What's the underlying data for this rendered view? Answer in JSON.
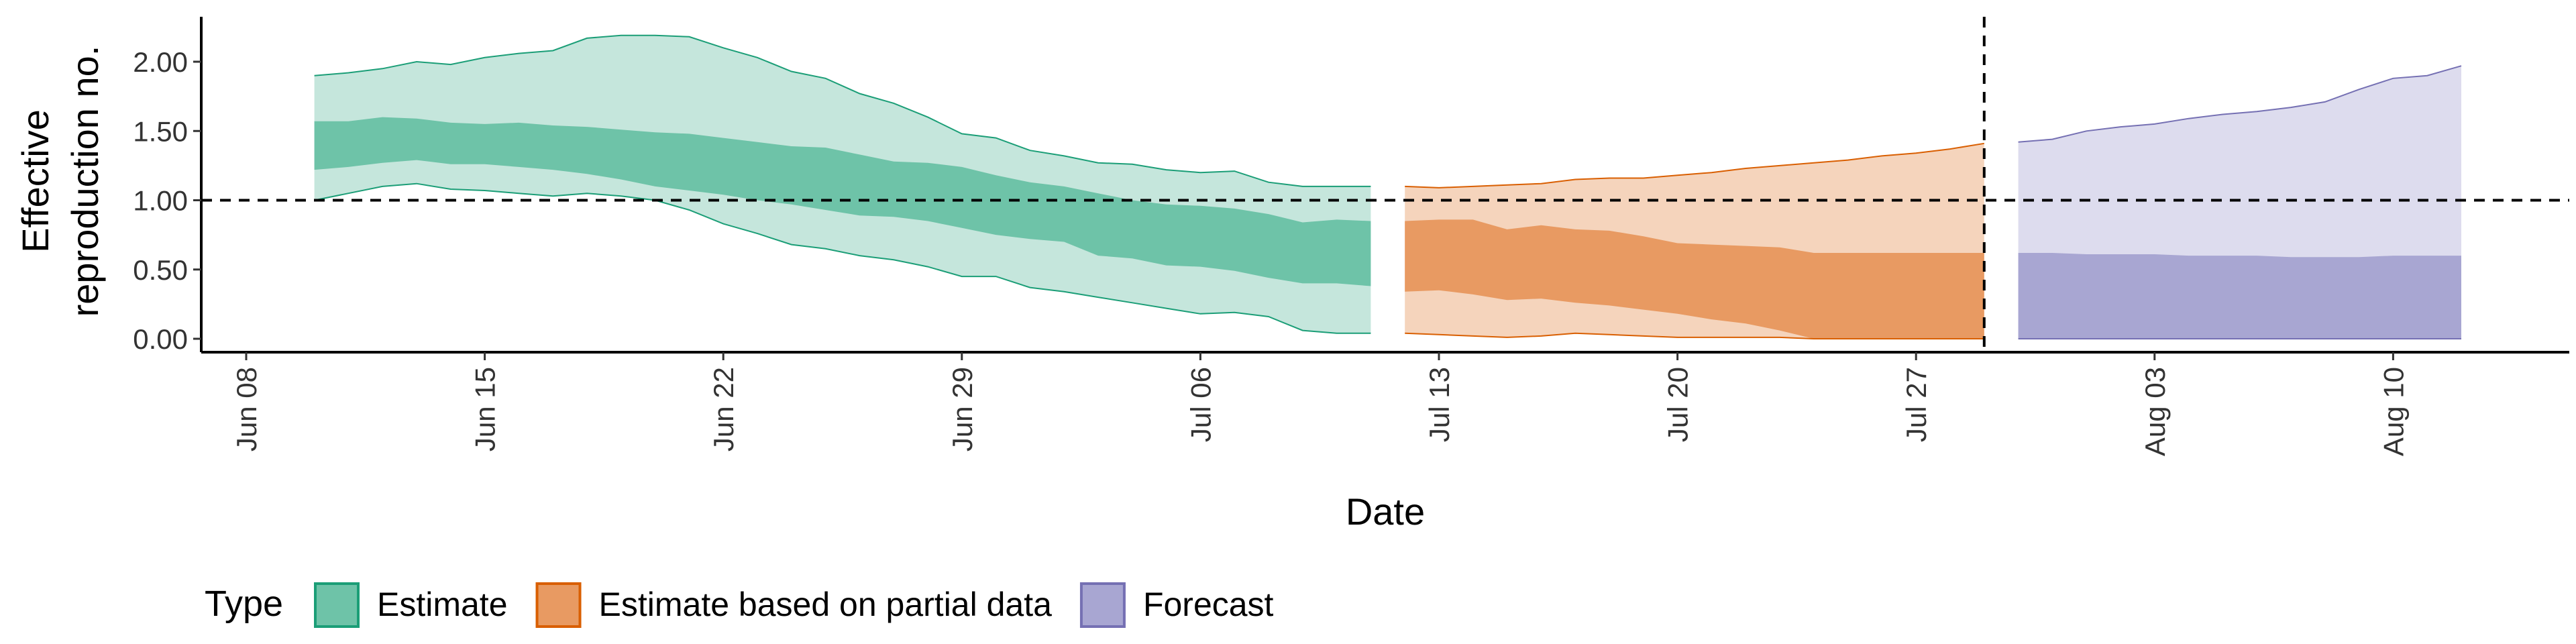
{
  "chart_data": {
    "type": "area",
    "xlabel": "Date",
    "ylabel_lines": [
      "Effective",
      "reproduction no."
    ],
    "ylim": [
      0,
      2.3
    ],
    "yticks": [
      0,
      0.5,
      1.0,
      1.5,
      2.0
    ],
    "ytick_labels": [
      "0.00",
      "0.50",
      "1.00",
      "1.50",
      "2.00"
    ],
    "xticks": [
      {
        "date": "2020-06-08",
        "label": "Jun 08"
      },
      {
        "date": "2020-06-15",
        "label": "Jun 15"
      },
      {
        "date": "2020-06-22",
        "label": "Jun 22"
      },
      {
        "date": "2020-06-29",
        "label": "Jun 29"
      },
      {
        "date": "2020-07-06",
        "label": "Jul 06"
      },
      {
        "date": "2020-07-13",
        "label": "Jul 13"
      },
      {
        "date": "2020-07-20",
        "label": "Jul 20"
      },
      {
        "date": "2020-07-27",
        "label": "Jul 27"
      },
      {
        "date": "2020-08-03",
        "label": "Aug 03"
      },
      {
        "date": "2020-08-10",
        "label": "Aug 10"
      }
    ],
    "xlim": [
      "2020-06-08",
      "2020-08-15"
    ],
    "reference_line_y": 1.0,
    "vertical_line_date": "2020-07-29",
    "legend": {
      "title": "Type",
      "position": "bottom",
      "items": [
        {
          "label": "Estimate",
          "fill": "#6ec3a8",
          "border": "#1b9e77"
        },
        {
          "label": "Estimate based on partial data",
          "fill": "#e89a62",
          "border": "#d95f02"
        },
        {
          "label": "Forecast",
          "fill": "#a8a6d2",
          "border": "#7570b3"
        }
      ]
    },
    "series": [
      {
        "name": "Estimate",
        "outer_fill": "#c5e6dc",
        "inner_fill": "#6ec3a8",
        "stroke": "#1b9e77",
        "dates": [
          "2020-06-10",
          "2020-06-11",
          "2020-06-12",
          "2020-06-13",
          "2020-06-14",
          "2020-06-15",
          "2020-06-16",
          "2020-06-17",
          "2020-06-18",
          "2020-06-19",
          "2020-06-20",
          "2020-06-21",
          "2020-06-22",
          "2020-06-23",
          "2020-06-24",
          "2020-06-25",
          "2020-06-26",
          "2020-06-27",
          "2020-06-28",
          "2020-06-29",
          "2020-06-30",
          "2020-07-01",
          "2020-07-02",
          "2020-07-03",
          "2020-07-04",
          "2020-07-05",
          "2020-07-06",
          "2020-07-07",
          "2020-07-08",
          "2020-07-09",
          "2020-07-10",
          "2020-07-11"
        ],
        "outer_upper": [
          1.9,
          1.92,
          1.95,
          2.0,
          1.98,
          2.03,
          2.06,
          2.08,
          2.17,
          2.19,
          2.19,
          2.18,
          2.1,
          2.03,
          1.93,
          1.88,
          1.77,
          1.7,
          1.6,
          1.48,
          1.45,
          1.36,
          1.32,
          1.27,
          1.26,
          1.22,
          1.2,
          1.21,
          1.13,
          1.1,
          1.1,
          1.1
        ],
        "inner_upper": [
          1.57,
          1.57,
          1.6,
          1.59,
          1.56,
          1.55,
          1.56,
          1.54,
          1.53,
          1.51,
          1.49,
          1.48,
          1.45,
          1.42,
          1.39,
          1.38,
          1.33,
          1.28,
          1.27,
          1.24,
          1.18,
          1.13,
          1.1,
          1.05,
          1.0,
          0.97,
          0.96,
          0.94,
          0.9,
          0.84,
          0.86,
          0.85
        ],
        "inner_lower": [
          1.22,
          1.24,
          1.27,
          1.29,
          1.26,
          1.26,
          1.24,
          1.22,
          1.19,
          1.15,
          1.1,
          1.07,
          1.04,
          1.0,
          0.97,
          0.93,
          0.89,
          0.88,
          0.85,
          0.8,
          0.75,
          0.72,
          0.7,
          0.6,
          0.58,
          0.53,
          0.52,
          0.49,
          0.44,
          0.4,
          0.4,
          0.38
        ],
        "outer_lower": [
          1.0,
          1.05,
          1.1,
          1.12,
          1.08,
          1.07,
          1.05,
          1.03,
          1.05,
          1.03,
          1.0,
          0.93,
          0.83,
          0.76,
          0.68,
          0.65,
          0.6,
          0.57,
          0.52,
          0.45,
          0.45,
          0.37,
          0.34,
          0.3,
          0.26,
          0.22,
          0.18,
          0.19,
          0.16,
          0.06,
          0.04,
          0.04
        ]
      },
      {
        "name": "Estimate based on partial data",
        "outer_fill": "#f5d4bc",
        "inner_fill": "#e89a62",
        "stroke": "#d95f02",
        "dates": [
          "2020-07-12",
          "2020-07-13",
          "2020-07-14",
          "2020-07-15",
          "2020-07-16",
          "2020-07-17",
          "2020-07-18",
          "2020-07-19",
          "2020-07-20",
          "2020-07-21",
          "2020-07-22",
          "2020-07-23",
          "2020-07-24",
          "2020-07-25",
          "2020-07-26",
          "2020-07-27",
          "2020-07-28",
          "2020-07-29"
        ],
        "outer_upper": [
          1.1,
          1.09,
          1.1,
          1.11,
          1.12,
          1.15,
          1.16,
          1.16,
          1.18,
          1.2,
          1.23,
          1.25,
          1.27,
          1.29,
          1.32,
          1.34,
          1.37,
          1.41
        ],
        "inner_upper": [
          0.85,
          0.86,
          0.86,
          0.79,
          0.82,
          0.79,
          0.78,
          0.74,
          0.69,
          0.68,
          0.67,
          0.66,
          0.62,
          0.62,
          0.62,
          0.62,
          0.62,
          0.62
        ],
        "inner_lower": [
          0.34,
          0.35,
          0.32,
          0.28,
          0.29,
          0.26,
          0.24,
          0.21,
          0.18,
          0.14,
          0.11,
          0.06,
          0.0,
          0.0,
          0.0,
          0.0,
          0.0,
          0.0
        ],
        "outer_lower": [
          0.04,
          0.03,
          0.02,
          0.01,
          0.02,
          0.04,
          0.03,
          0.02,
          0.01,
          0.01,
          0.01,
          0.01,
          0.0,
          0.0,
          0.0,
          0.0,
          0.0,
          0.0
        ]
      },
      {
        "name": "Forecast",
        "outer_fill": "#dddcee",
        "inner_fill": "#a8a6d2",
        "stroke": "#7570b3",
        "dates": [
          "2020-07-30",
          "2020-07-31",
          "2020-08-01",
          "2020-08-02",
          "2020-08-03",
          "2020-08-04",
          "2020-08-05",
          "2020-08-06",
          "2020-08-07",
          "2020-08-08",
          "2020-08-09",
          "2020-08-10",
          "2020-08-11",
          "2020-08-12"
        ],
        "outer_upper": [
          1.42,
          1.44,
          1.5,
          1.53,
          1.55,
          1.59,
          1.62,
          1.64,
          1.67,
          1.71,
          1.8,
          1.88,
          1.9,
          1.97
        ],
        "inner_upper": [
          0.62,
          0.62,
          0.61,
          0.61,
          0.61,
          0.6,
          0.6,
          0.6,
          0.59,
          0.59,
          0.59,
          0.6,
          0.6,
          0.6
        ],
        "inner_lower": [
          0,
          0,
          0,
          0,
          0,
          0,
          0,
          0,
          0,
          0,
          0,
          0,
          0,
          0
        ],
        "outer_lower": [
          0,
          0,
          0,
          0,
          0,
          0,
          0,
          0,
          0,
          0,
          0,
          0,
          0,
          0
        ]
      }
    ]
  }
}
